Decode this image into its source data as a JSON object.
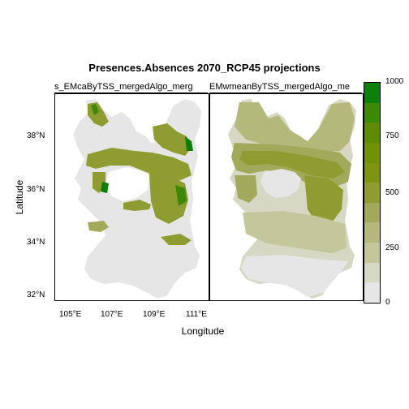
{
  "title": "Presences.Absences 2070_RCP45 projections",
  "panels": [
    {
      "strip": "s_EMcaByTSS_mergedAlgo_merg"
    },
    {
      "strip": "EMwmeanByTSS_mergedAlgo_me"
    }
  ],
  "axes": {
    "xlabel": "Longitude",
    "ylabel": "Latitude",
    "xticks": [
      "105°E",
      "107°E",
      "109°E",
      "111°E"
    ],
    "yticks": [
      "32°N",
      "34°N",
      "36°N",
      "38°N"
    ]
  },
  "colorbar": {
    "labels": [
      "1000",
      "750",
      "500",
      "250",
      "0"
    ],
    "colors": [
      "#e6e6e6",
      "#d6d8c4",
      "#c4c79b",
      "#b4b87a",
      "#a2a95a",
      "#8f9c32",
      "#809414",
      "#739108",
      "#5e8c05",
      "#3e8808",
      "#0b7f0a"
    ]
  }
}
